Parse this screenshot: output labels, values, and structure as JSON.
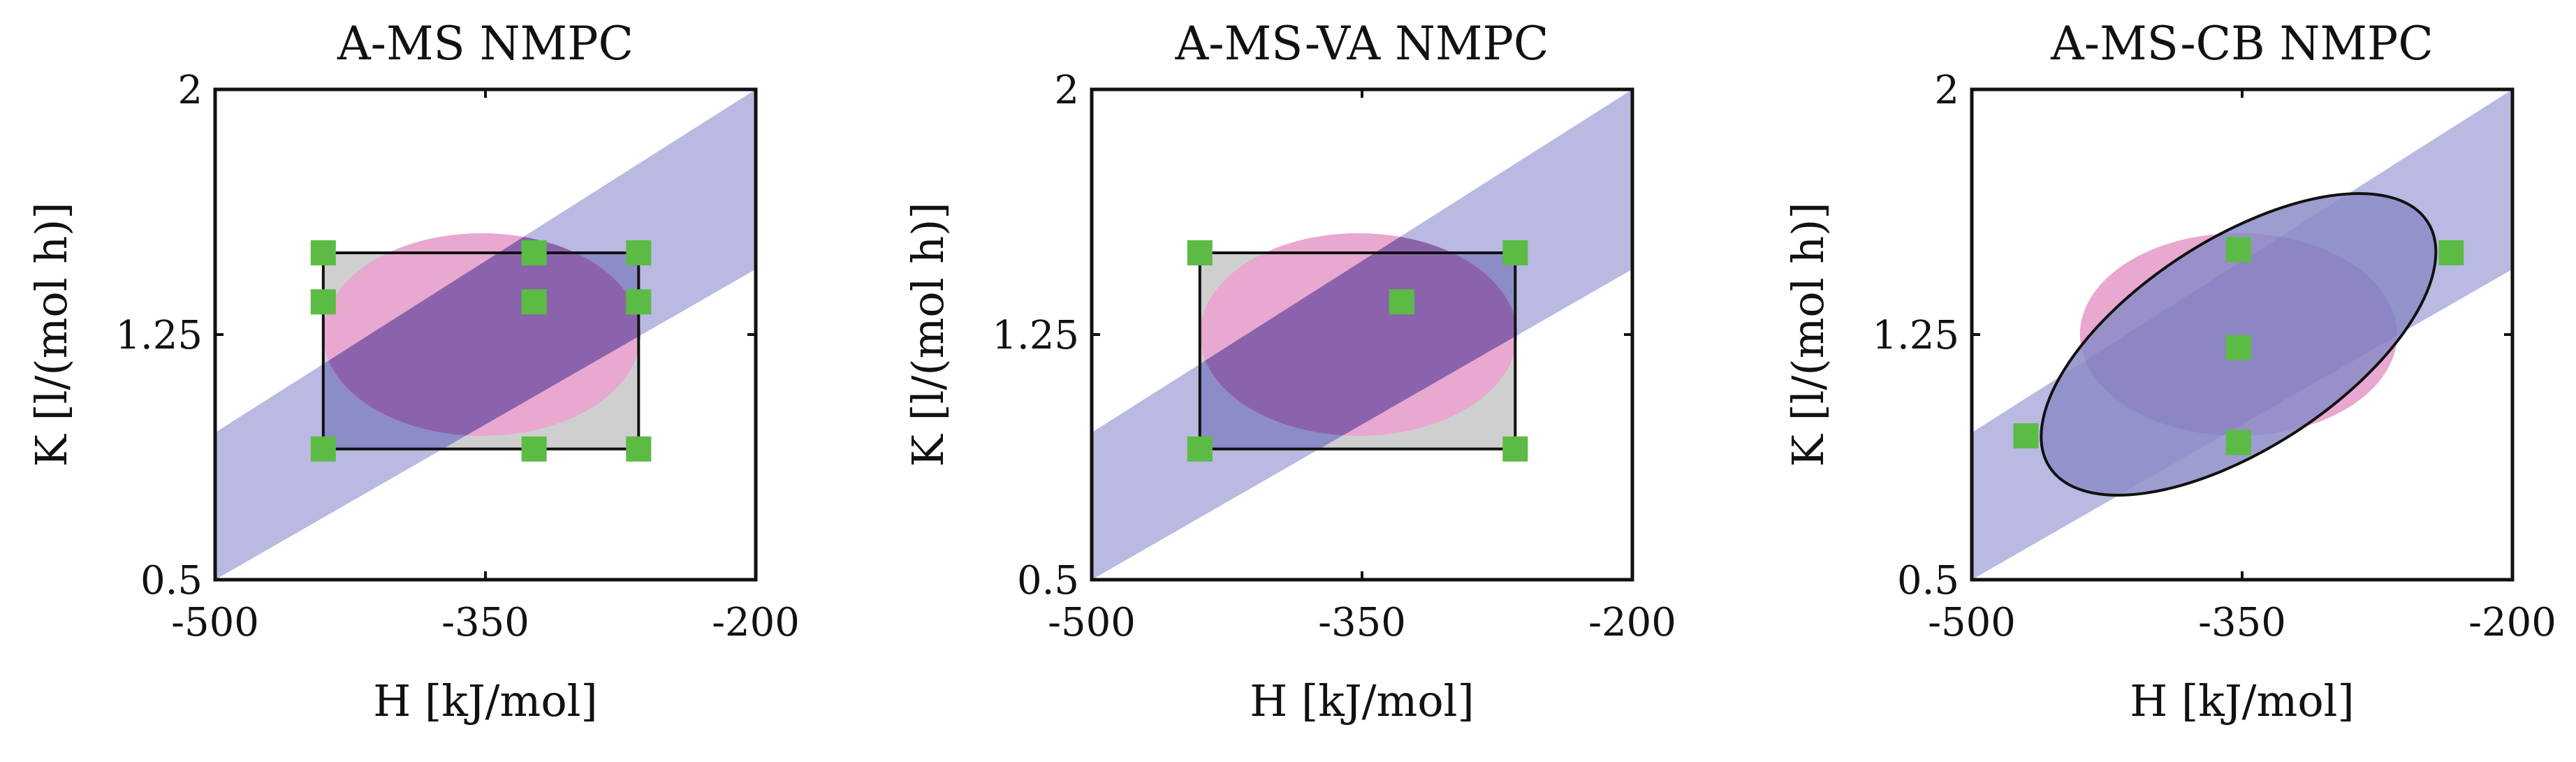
{
  "colors": {
    "band": "#b9b9e2",
    "pink": "#e8a8cf",
    "gray_box": "#cfcfcf",
    "blue_overlap": "#8c8cc8",
    "purple_overlap": "#8b63ad",
    "marker": "#5cbb45",
    "frame": "#111111"
  },
  "chart_data": [
    {
      "type": "scatter",
      "title": "A-MS NMPC",
      "xlabel": "H [kJ/mol]",
      "ylabel": "K [l/(mol h)]",
      "xlim": [
        -500,
        -200
      ],
      "ylim": [
        0.5,
        2
      ],
      "xticks": [
        -500,
        -350,
        -200
      ],
      "xtick_labels": [
        "-500",
        "-350",
        "-200"
      ],
      "yticks": [
        0.5,
        1.25,
        2
      ],
      "ytick_labels": [
        "0.5",
        "1.25",
        "2"
      ],
      "feasible_band": {
        "lower": [
          [
            -500,
            0.5
          ],
          [
            -200,
            1.45
          ]
        ],
        "upper": [
          [
            -500,
            0.95
          ],
          [
            -200,
            2
          ]
        ]
      },
      "uncertainty_ellipse": {
        "center": [
          -352,
          1.25
        ],
        "radii": [
          88,
          0.31
        ],
        "rotation_deg": 0
      },
      "region": {
        "shape": "box",
        "h_range": [
          -440,
          -265
        ],
        "k_range": [
          0.9,
          1.5
        ]
      },
      "scenarios": [
        [
          -440,
          1.5
        ],
        [
          -323,
          1.5
        ],
        [
          -265,
          1.5
        ],
        [
          -440,
          1.35
        ],
        [
          -323,
          1.35
        ],
        [
          -265,
          1.35
        ],
        [
          -440,
          0.9
        ],
        [
          -323,
          0.9
        ],
        [
          -265,
          0.9
        ]
      ]
    },
    {
      "type": "scatter",
      "title": "A-MS-VA NMPC",
      "xlabel": "H [kJ/mol]",
      "ylabel": "K [l/(mol h)]",
      "xlim": [
        -500,
        -200
      ],
      "ylim": [
        0.5,
        2
      ],
      "xticks": [
        -500,
        -350,
        -200
      ],
      "xtick_labels": [
        "-500",
        "-350",
        "-200"
      ],
      "yticks": [
        0.5,
        1.25,
        2
      ],
      "ytick_labels": [
        "0.5",
        "1.25",
        "2"
      ],
      "feasible_band": {
        "lower": [
          [
            -500,
            0.5
          ],
          [
            -200,
            1.45
          ]
        ],
        "upper": [
          [
            -500,
            0.95
          ],
          [
            -200,
            2
          ]
        ]
      },
      "uncertainty_ellipse": {
        "center": [
          -352,
          1.25
        ],
        "radii": [
          88,
          0.31
        ],
        "rotation_deg": 0
      },
      "region": {
        "shape": "box",
        "h_range": [
          -440,
          -265
        ],
        "k_range": [
          0.9,
          1.5
        ]
      },
      "scenarios": [
        [
          -440,
          1.5
        ],
        [
          -265,
          1.5
        ],
        [
          -328,
          1.35
        ],
        [
          -440,
          0.9
        ],
        [
          -265,
          0.9
        ]
      ]
    },
    {
      "type": "scatter",
      "title": "A-MS-CB NMPC",
      "xlabel": "H [kJ/mol]",
      "ylabel": "K [l/(mol h)]",
      "xlim": [
        -500,
        -200
      ],
      "ylim": [
        0.5,
        2
      ],
      "xticks": [
        -500,
        -350,
        -200
      ],
      "xtick_labels": [
        "-500",
        "-350",
        "-200"
      ],
      "yticks": [
        0.5,
        1.25,
        2
      ],
      "ytick_labels": [
        "0.5",
        "1.25",
        "2"
      ],
      "feasible_band": {
        "lower": [
          [
            -500,
            0.5
          ],
          [
            -200,
            1.45
          ]
        ],
        "upper": [
          [
            -500,
            0.95
          ],
          [
            -200,
            2
          ]
        ]
      },
      "uncertainty_ellipse": {
        "center": [
          -352,
          1.25
        ],
        "radii": [
          88,
          0.31
        ],
        "rotation_deg": 0
      },
      "region": {
        "shape": "ellipse",
        "center": [
          -352,
          1.22
        ],
        "radii": [
          125,
          0.32
        ],
        "rotation_deg": -33
      },
      "scenarios": [
        [
          -352,
          1.51
        ],
        [
          -234,
          1.5
        ],
        [
          -352,
          1.21
        ],
        [
          -470,
          0.94
        ],
        [
          -352,
          0.92
        ]
      ]
    }
  ]
}
